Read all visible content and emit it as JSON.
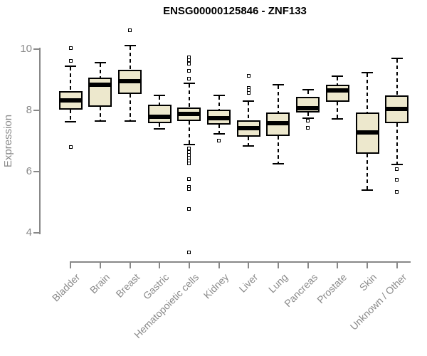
{
  "chart_data": {
    "type": "boxplot",
    "title": "ENSG00000125846 - ZNF133",
    "ylabel": "Expression",
    "xlabel": "",
    "ylim": [
      3.1,
      10.9
    ],
    "yticks": [
      4,
      6,
      8,
      10
    ],
    "grid": false,
    "legend": "none",
    "categories": [
      "Bladder",
      "Brain",
      "Breast",
      "Gastric",
      "Hematopoietic cells",
      "Kidney",
      "Liver",
      "Lung",
      "Pancreas",
      "Prostate",
      "Skin",
      "Unknown / Other"
    ],
    "series": [
      {
        "name": "Bladder",
        "whisker_low": 7.63,
        "q1": 8.02,
        "median": 8.33,
        "q3": 8.63,
        "whisker_high": 9.45,
        "outliers": [
          10.03,
          9.62,
          6.8
        ]
      },
      {
        "name": "Brain",
        "whisker_low": 7.65,
        "q1": 8.12,
        "median": 8.84,
        "q3": 9.07,
        "whisker_high": 9.56,
        "outliers": []
      },
      {
        "name": "Breast",
        "whisker_low": 7.65,
        "q1": 8.54,
        "median": 8.95,
        "q3": 9.33,
        "whisker_high": 10.11,
        "outliers": [
          10.62
        ]
      },
      {
        "name": "Gastric",
        "whisker_low": 7.4,
        "q1": 7.57,
        "median": 7.79,
        "q3": 8.19,
        "whisker_high": 8.48,
        "outliers": []
      },
      {
        "name": "Hematopoietic cells",
        "whisker_low": 6.88,
        "q1": 7.64,
        "median": 7.88,
        "q3": 8.1,
        "whisker_high": 8.89,
        "outliers": [
          9.73,
          9.63,
          9.53,
          9.28,
          9.03,
          6.76,
          6.64,
          6.55,
          6.45,
          6.35,
          6.26,
          5.75,
          5.51,
          5.42,
          4.78,
          3.35
        ]
      },
      {
        "name": "Kidney",
        "whisker_low": 7.24,
        "q1": 7.53,
        "median": 7.75,
        "q3": 8.02,
        "whisker_high": 8.48,
        "outliers": [
          7.01
        ]
      },
      {
        "name": "Liver",
        "whisker_low": 6.84,
        "q1": 7.15,
        "median": 7.41,
        "q3": 7.67,
        "whisker_high": 8.31,
        "outliers": [
          9.12,
          8.74,
          8.66,
          8.58
        ]
      },
      {
        "name": "Lung",
        "whisker_low": 6.26,
        "q1": 7.17,
        "median": 7.59,
        "q3": 7.92,
        "whisker_high": 8.83,
        "outliers": []
      },
      {
        "name": "Pancreas",
        "whisker_low": 7.75,
        "q1": 7.94,
        "median": 8.08,
        "q3": 8.45,
        "whisker_high": 8.68,
        "outliers": [
          7.67,
          7.42
        ]
      },
      {
        "name": "Prostate",
        "whisker_low": 7.73,
        "q1": 8.27,
        "median": 8.66,
        "q3": 8.84,
        "whisker_high": 9.12,
        "outliers": []
      },
      {
        "name": "Skin",
        "whisker_low": 5.4,
        "q1": 6.58,
        "median": 7.29,
        "q3": 7.92,
        "whisker_high": 9.24,
        "outliers": []
      },
      {
        "name": "Unknown / Other",
        "whisker_low": 6.24,
        "q1": 7.58,
        "median": 8.05,
        "q3": 8.48,
        "whisker_high": 9.7,
        "outliers": [
          6.09,
          5.74,
          5.33
        ]
      }
    ],
    "colors": {
      "box_fill": "#EDE8CD",
      "box_border": "#000000",
      "median": "#000000",
      "whisker": "#000000",
      "axis": "#888888",
      "tick_label": "#8A8A8A",
      "title": "#000000",
      "background": "#FFFFFF"
    }
  }
}
